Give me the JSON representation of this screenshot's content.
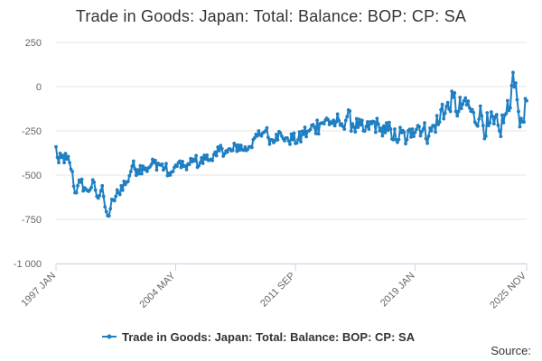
{
  "chart_data": {
    "type": "line",
    "title": "Trade in Goods: Japan: Total: Balance: BOP: CP: SA",
    "xlabel": "",
    "ylabel": "",
    "ylim": [
      -1000,
      250
    ],
    "yticks": [
      250,
      0,
      -250,
      -500,
      -750,
      -1000
    ],
    "ytick_labels": [
      "250",
      "0",
      "-250",
      "-500",
      "-750",
      "-1 000"
    ],
    "x_range": [
      0,
      346
    ],
    "xticks": [
      {
        "index": 0,
        "label": "1997 JAN"
      },
      {
        "index": 88,
        "label": "2004 MAY"
      },
      {
        "index": 176,
        "label": "2011 SEP"
      },
      {
        "index": 264,
        "label": "2019 JAN"
      },
      {
        "index": 346,
        "label": "2025 NOV"
      }
    ],
    "anchors": [
      [
        0,
        -340
      ],
      [
        2,
        -430
      ],
      [
        4,
        -400
      ],
      [
        8,
        -410
      ],
      [
        10,
        -430
      ],
      [
        12,
        -480
      ],
      [
        14,
        -600
      ],
      [
        16,
        -560
      ],
      [
        18,
        -540
      ],
      [
        22,
        -580
      ],
      [
        26,
        -570
      ],
      [
        28,
        -540
      ],
      [
        30,
        -620
      ],
      [
        34,
        -560
      ],
      [
        36,
        -680
      ],
      [
        38,
        -730
      ],
      [
        40,
        -690
      ],
      [
        42,
        -640
      ],
      [
        44,
        -620
      ],
      [
        46,
        -600
      ],
      [
        48,
        -560
      ],
      [
        52,
        -540
      ],
      [
        56,
        -450
      ],
      [
        60,
        -470
      ],
      [
        64,
        -450
      ],
      [
        68,
        -460
      ],
      [
        72,
        -430
      ],
      [
        76,
        -440
      ],
      [
        80,
        -460
      ],
      [
        84,
        -500
      ],
      [
        86,
        -480
      ],
      [
        90,
        -430
      ],
      [
        94,
        -450
      ],
      [
        98,
        -440
      ],
      [
        102,
        -420
      ],
      [
        106,
        -430
      ],
      [
        110,
        -410
      ],
      [
        114,
        -410
      ],
      [
        118,
        -390
      ],
      [
        122,
        -350
      ],
      [
        126,
        -370
      ],
      [
        130,
        -360
      ],
      [
        134,
        -330
      ],
      [
        138,
        -360
      ],
      [
        142,
        -340
      ],
      [
        146,
        -290
      ],
      [
        150,
        -270
      ],
      [
        154,
        -250
      ],
      [
        158,
        -300
      ],
      [
        162,
        -270
      ],
      [
        166,
        -280
      ],
      [
        170,
        -290
      ],
      [
        174,
        -300
      ],
      [
        178,
        -300
      ],
      [
        182,
        -270
      ],
      [
        186,
        -250
      ],
      [
        190,
        -230
      ],
      [
        194,
        -210
      ],
      [
        198,
        -190
      ],
      [
        202,
        -200
      ],
      [
        206,
        -200
      ],
      [
        210,
        -210
      ],
      [
        214,
        -170
      ],
      [
        218,
        -210
      ],
      [
        222,
        -230
      ],
      [
        226,
        -250
      ],
      [
        230,
        -240
      ],
      [
        234,
        -200
      ],
      [
        238,
        -250
      ],
      [
        242,
        -260
      ],
      [
        246,
        -240
      ],
      [
        250,
        -300
      ],
      [
        254,
        -260
      ],
      [
        258,
        -300
      ],
      [
        262,
        -240
      ],
      [
        266,
        -220
      ],
      [
        270,
        -240
      ],
      [
        274,
        -280
      ],
      [
        278,
        -220
      ],
      [
        282,
        -200
      ],
      [
        284,
        -100
      ],
      [
        286,
        -150
      ],
      [
        288,
        -90
      ],
      [
        290,
        -140
      ],
      [
        292,
        -60
      ],
      [
        296,
        -140
      ],
      [
        300,
        -80
      ],
      [
        304,
        -120
      ],
      [
        308,
        -200
      ],
      [
        312,
        -110
      ],
      [
        314,
        -220
      ],
      [
        318,
        -220
      ],
      [
        322,
        -210
      ],
      [
        326,
        -250
      ],
      [
        330,
        -160
      ],
      [
        334,
        -120
      ],
      [
        336,
        80
      ],
      [
        338,
        20
      ],
      [
        340,
        -140
      ],
      [
        342,
        -180
      ],
      [
        344,
        -200
      ],
      [
        346,
        -80
      ]
    ],
    "series": [
      {
        "name": "Trade in Goods: Japan: Total: Balance: BOP: CP: SA",
        "color": "#1f7fc2",
        "values": []
      }
    ],
    "legend": "bottom"
  },
  "footer": {
    "source_label": "Source:"
  }
}
